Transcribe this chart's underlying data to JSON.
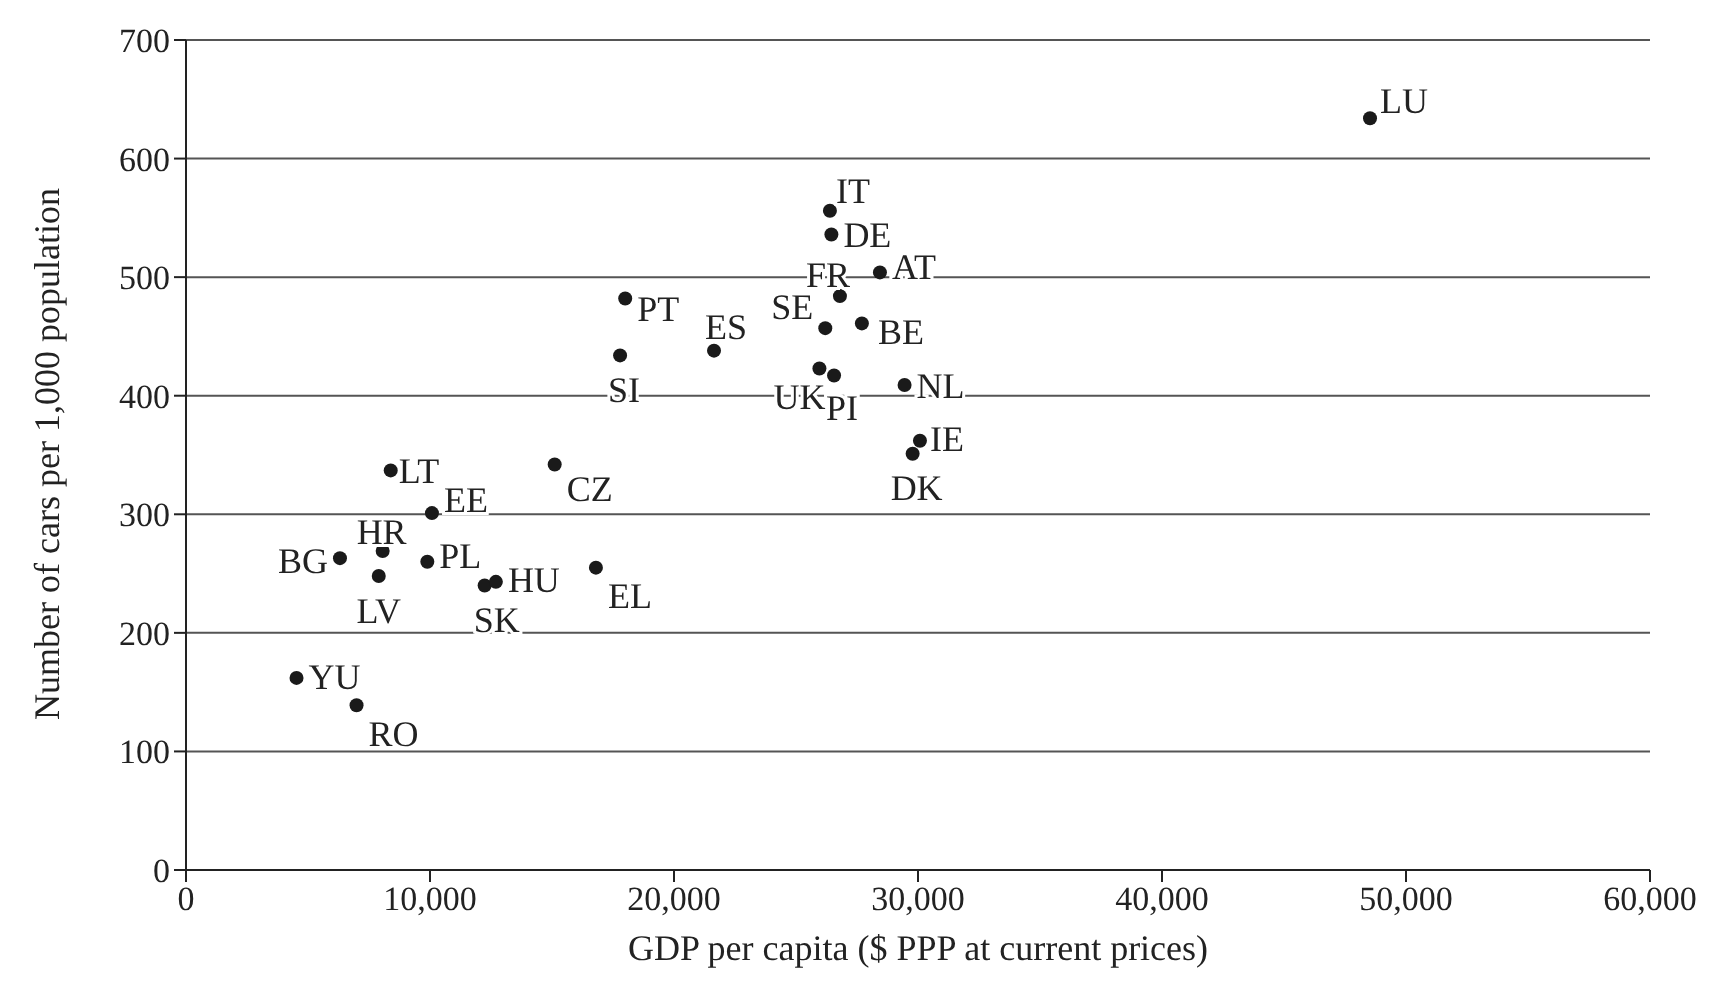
{
  "chart_data": {
    "type": "scatter",
    "xlabel": "GDP per capita ($ PPP at current prices)",
    "ylabel": "Number of cars per 1,000 population",
    "x": [
      48525,
      26390,
      26450,
      28440,
      26800,
      26200,
      27700,
      18000,
      21640,
      17790,
      25960,
      26560,
      29450,
      30080,
      29780,
      8390,
      15110,
      10080,
      8060,
      6310,
      9890,
      7900,
      12240,
      12700,
      16800,
      4530,
      6990
    ],
    "values": [
      634,
      556,
      536,
      504,
      484,
      457,
      461,
      482,
      438,
      434,
      423,
      417,
      409,
      362,
      351,
      337,
      342,
      301,
      269,
      263,
      260,
      248,
      240,
      243,
      255,
      162,
      139
    ],
    "color": "#1a1a1a",
    "marker": "circle",
    "grid": "y",
    "xlim": [
      0,
      60000
    ],
    "xticks": [
      0,
      {
        "value": 10000,
        "label": "10,000"
      },
      {
        "value": 20000,
        "label": "20,000"
      },
      {
        "value": 30000,
        "label": "30,000"
      },
      {
        "value": 40000,
        "label": "40,000"
      },
      {
        "value": 50000,
        "label": "50,000"
      },
      {
        "value": 60000,
        "label": "60,000"
      }
    ],
    "ylim": [
      0,
      700
    ],
    "yticks": [
      0,
      100,
      200,
      300,
      400,
      500,
      600,
      700
    ],
    "annotations": [
      {
        "text": "LU",
        "x": 48525,
        "y": 634
      },
      {
        "text": "IT",
        "x": 26390,
        "y": 556
      },
      {
        "text": "DE",
        "x": 26450,
        "y": 536
      },
      {
        "text": "AT",
        "x": 28440,
        "y": 504
      },
      {
        "text": "FR",
        "x": 26800,
        "y": 484
      },
      {
        "text": "SE",
        "x": 26200,
        "y": 457
      },
      {
        "text": "BE",
        "x": 27700,
        "y": 461
      },
      {
        "text": "PT",
        "x": 18000,
        "y": 482
      },
      {
        "text": "ES",
        "x": 21640,
        "y": 438
      },
      {
        "text": "SI",
        "x": 17790,
        "y": 434
      },
      {
        "text": "UK",
        "x": 25960,
        "y": 423
      },
      {
        "text": "PI",
        "x": 26560,
        "y": 417
      },
      {
        "text": "NL",
        "x": 29450,
        "y": 409
      },
      {
        "text": "IE",
        "x": 30080,
        "y": 362
      },
      {
        "text": "DK",
        "x": 29780,
        "y": 351
      },
      {
        "text": "LT",
        "x": 8390,
        "y": 337
      },
      {
        "text": "CZ",
        "x": 15110,
        "y": 342
      },
      {
        "text": "EE",
        "x": 10080,
        "y": 301
      },
      {
        "text": "HR",
        "x": 8060,
        "y": 269
      },
      {
        "text": "BG",
        "x": 6310,
        "y": 263
      },
      {
        "text": "PL",
        "x": 9890,
        "y": 260
      },
      {
        "text": "LV",
        "x": 7900,
        "y": 248
      },
      {
        "text": "SK",
        "x": 12240,
        "y": 240
      },
      {
        "text": "HU",
        "x": 12700,
        "y": 243
      },
      {
        "text": "EL",
        "x": 16800,
        "y": 255
      },
      {
        "text": "YU",
        "x": 4530,
        "y": 162
      },
      {
        "text": "RO",
        "x": 6990,
        "y": 139
      }
    ]
  }
}
